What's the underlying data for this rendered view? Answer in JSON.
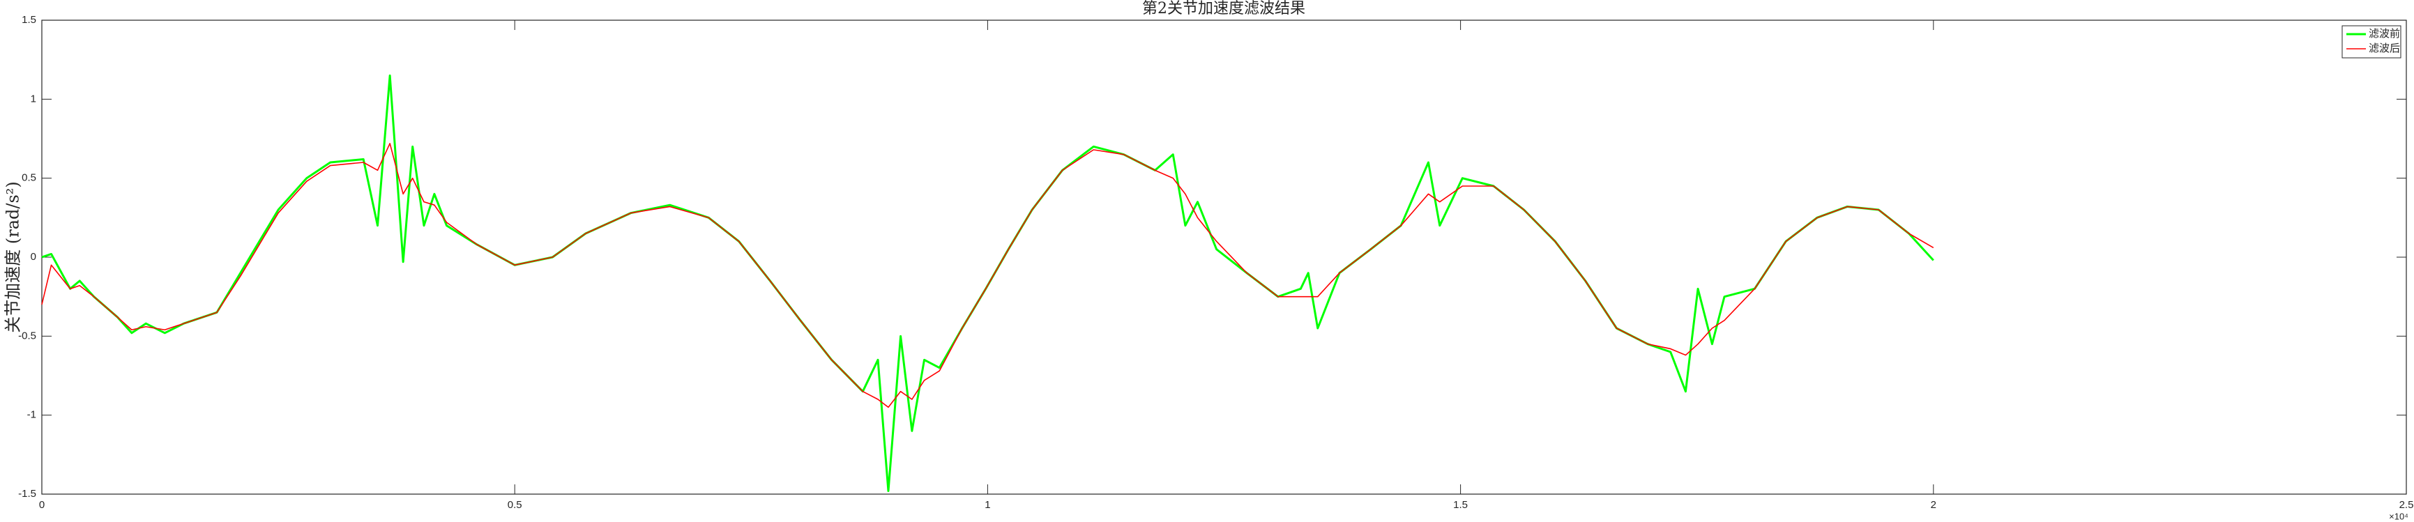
{
  "chart_data": {
    "type": "line",
    "title": "第2关节加速度滤波结果",
    "y_label": "关节加速度 (rad/s²)",
    "x_multiplier": "×10⁴",
    "x": [
      0,
      100,
      300,
      400,
      550,
      800,
      950,
      1100,
      1300,
      1500,
      1850,
      2100,
      2250,
      2500,
      2800,
      3050,
      3400,
      3550,
      3680,
      3820,
      3920,
      4040,
      4150,
      4280,
      4600,
      5000,
      5400,
      5750,
      6230,
      6640,
      7050,
      7370,
      7700,
      8020,
      8350,
      8680,
      8840,
      8950,
      9080,
      9200,
      9330,
      9490,
      9730,
      9980,
      10220,
      10470,
      10790,
      11120,
      11440,
      11770,
      11960,
      12090,
      12220,
      12420,
      12740,
      13070,
      13310,
      13390,
      13490,
      13720,
      14050,
      14370,
      14660,
      14780,
      15020,
      15350,
      15670,
      16000,
      16320,
      16650,
      16980,
      17220,
      17380,
      17510,
      17660,
      17790,
      18110,
      18440,
      18770,
      19090,
      19420,
      19740,
      20000
    ],
    "series": [
      {
        "name": "滤波前",
        "color": "#00ff00",
        "values": [
          0,
          0.02,
          -0.2,
          -0.15,
          -0.25,
          -0.38,
          -0.48,
          -0.42,
          -0.48,
          -0.42,
          -0.35,
          -0.1,
          0.05,
          0.3,
          0.5,
          0.6,
          0.62,
          0.2,
          1.15,
          -0.03,
          0.7,
          0.2,
          0.4,
          0.2,
          0.08,
          -0.05,
          0,
          0.15,
          0.28,
          0.33,
          0.25,
          0.1,
          -0.15,
          -0.4,
          -0.65,
          -0.85,
          -0.65,
          -1.48,
          -0.5,
          -1.1,
          -0.65,
          -0.7,
          -0.45,
          -0.2,
          0.05,
          0.3,
          0.55,
          0.7,
          0.65,
          0.55,
          0.65,
          0.2,
          0.35,
          0.05,
          -0.1,
          -0.25,
          -0.2,
          -0.1,
          -0.45,
          -0.1,
          0.05,
          0.2,
          0.6,
          0.2,
          0.5,
          0.45,
          0.3,
          0.1,
          -0.15,
          -0.45,
          -0.55,
          -0.6,
          -0.85,
          -0.2,
          -0.55,
          -0.25,
          -0.2,
          0.1,
          0.25,
          0.32,
          0.3,
          0.15,
          -0.02
        ]
      },
      {
        "name": "滤波后",
        "color": "#ff0000",
        "values": [
          -0.3,
          -0.05,
          -0.2,
          -0.18,
          -0.25,
          -0.38,
          -0.46,
          -0.44,
          -0.46,
          -0.42,
          -0.35,
          -0.12,
          0.03,
          0.28,
          0.48,
          0.58,
          0.6,
          0.55,
          0.72,
          0.4,
          0.5,
          0.35,
          0.33,
          0.22,
          0.08,
          -0.05,
          0,
          0.15,
          0.28,
          0.32,
          0.25,
          0.1,
          -0.15,
          -0.4,
          -0.65,
          -0.85,
          -0.9,
          -0.95,
          -0.85,
          -0.9,
          -0.78,
          -0.72,
          -0.45,
          -0.2,
          0.05,
          0.3,
          0.55,
          0.68,
          0.65,
          0.55,
          0.5,
          0.4,
          0.25,
          0.1,
          -0.1,
          -0.25,
          -0.25,
          -0.25,
          -0.25,
          -0.1,
          0.05,
          0.2,
          0.4,
          0.35,
          0.45,
          0.45,
          0.3,
          0.1,
          -0.15,
          -0.45,
          -0.55,
          -0.58,
          -0.62,
          -0.55,
          -0.45,
          -0.4,
          -0.2,
          0.1,
          0.25,
          0.32,
          0.3,
          0.15,
          0.06
        ]
      }
    ],
    "xlim": [
      0,
      25000
    ],
    "xticks": [
      {
        "value": 0,
        "label": "0"
      },
      {
        "value": 5000,
        "label": "0.5"
      },
      {
        "value": 10000,
        "label": "1"
      },
      {
        "value": 15000,
        "label": "1.5"
      },
      {
        "value": 20000,
        "label": "2"
      },
      {
        "value": 25000,
        "label": "2.5"
      }
    ],
    "ylim": [
      -1.5,
      1.5
    ],
    "yticks": [
      -1.5,
      -1,
      -0.5,
      0,
      0.5,
      1,
      1.5
    ],
    "legend": "top-right"
  }
}
